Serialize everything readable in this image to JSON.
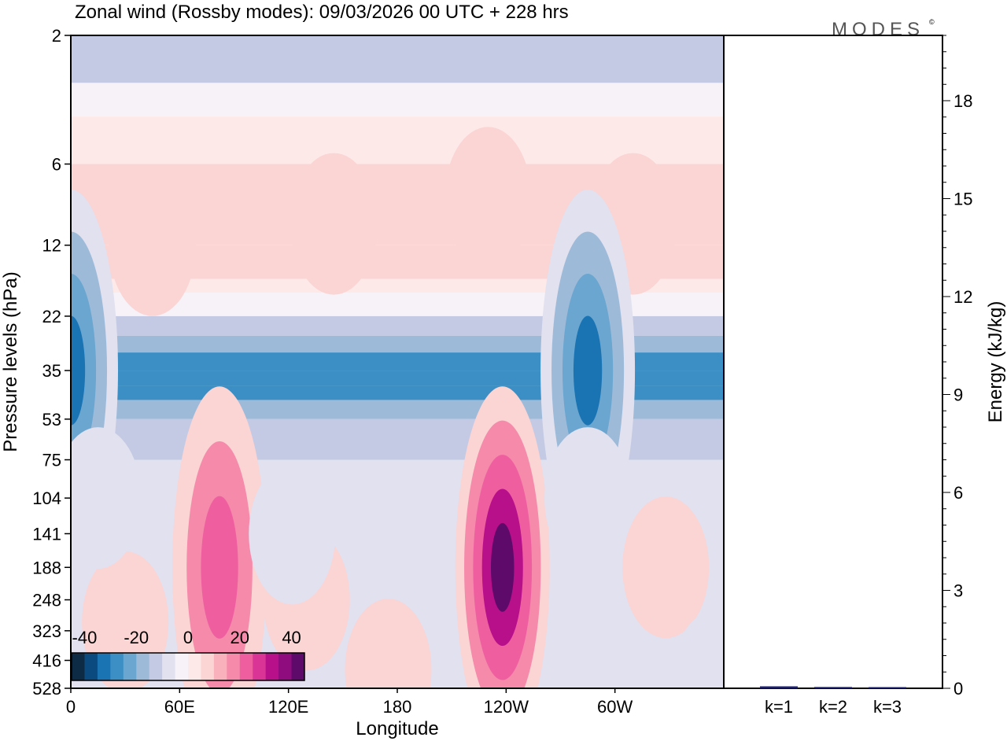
{
  "chart_data": {
    "type": "heatmap",
    "title": "Zonal wind (Rossby modes):  09/03/2026  00 UTC  + 228 hrs",
    "logo": "MODES",
    "logo_mark": "©",
    "xlabel": "Longitude",
    "ylabel": "Pressure levels (hPa)",
    "x_ticks": [
      "0",
      "60E",
      "120E",
      "180",
      "120W",
      "60W"
    ],
    "y_ticks": [
      "2",
      "6",
      "12",
      "22",
      "35",
      "53",
      "75",
      "104",
      "141",
      "188",
      "248",
      "323",
      "416",
      "528"
    ],
    "colorbar": {
      "ticks": [
        "-40",
        "-20",
        "0",
        "20",
        "40"
      ],
      "range": [
        -45,
        45
      ],
      "colors": [
        "#0d2b45",
        "#0a4a7e",
        "#1a73b3",
        "#3b8fc4",
        "#6aa6cf",
        "#9ebad9",
        "#c4cae3",
        "#e1e1ef",
        "#f6f2f7",
        "#fde9e8",
        "#fbd4d4",
        "#f9b2bb",
        "#f58aab",
        "#ef5fa0",
        "#db3497",
        "#b8108a",
        "#8e0c7e",
        "#5e0a6b"
      ]
    },
    "energy_panel": {
      "ylabel": "Energy (kJ/kg)",
      "ylim": [
        0,
        20
      ],
      "y_ticks": [
        0,
        3,
        6,
        9,
        12,
        15,
        18
      ],
      "categories": [
        "k=1",
        "k=2",
        "k=3"
      ],
      "values": [
        0.06,
        0.04,
        0.02
      ],
      "bar_color": "#1a1f6e"
    },
    "bands": [
      {
        "level": "2",
        "value": -12
      },
      {
        "level": "3",
        "value": -5
      },
      {
        "level": "4",
        "value": 2
      },
      {
        "level": "6",
        "value": 8
      },
      {
        "level": "12",
        "value": 8
      },
      {
        "level": "16",
        "value": 3
      },
      {
        "level": "18",
        "value": -5
      },
      {
        "level": "22",
        "value": -12
      },
      {
        "level": "26",
        "value": -20
      },
      {
        "level": "30",
        "value": -28
      },
      {
        "level": "35",
        "value": -30
      },
      {
        "level": "40",
        "value": -28
      },
      {
        "level": "45",
        "value": -20
      },
      {
        "level": "53",
        "value": -12
      },
      {
        "level": "75",
        "value": -8
      },
      {
        "level": "528",
        "value": -6
      }
    ],
    "features": [
      {
        "lon": 145,
        "level": "10",
        "value": 14
      },
      {
        "lon": 310,
        "level": "10",
        "value": 10
      },
      {
        "lon": 230,
        "level": "8",
        "value": 4
      },
      {
        "lon": 45,
        "level": "12",
        "value": 6
      },
      {
        "lon": 0,
        "level": "35",
        "value": -34
      },
      {
        "lon": 285,
        "level": "35",
        "value": -34
      },
      {
        "lon": 82,
        "level": "188",
        "value": 28
      },
      {
        "lon": 238,
        "level": "188",
        "value": 42
      },
      {
        "lon": 328,
        "level": "188",
        "value": 15
      },
      {
        "lon": 30,
        "level": "300",
        "value": 2
      },
      {
        "lon": 130,
        "level": "248",
        "value": 2
      },
      {
        "lon": 175,
        "level": "450",
        "value": 3
      },
      {
        "lon": 122,
        "level": "141",
        "value": -12
      },
      {
        "lon": 15,
        "level": "104",
        "value": -10
      },
      {
        "lon": 285,
        "level": "104",
        "value": -12
      },
      {
        "lon": 355,
        "level": "500",
        "value": -8
      }
    ]
  }
}
